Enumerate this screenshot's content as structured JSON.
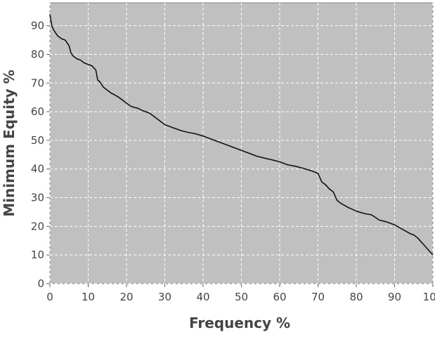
{
  "chart_data": {
    "type": "line",
    "title": "",
    "xlabel": "Frequency %",
    "ylabel": "Minimum Equity %",
    "xlim": [
      0,
      100
    ],
    "ylim": [
      0,
      98
    ],
    "x_ticks": [
      "0",
      "10",
      "20",
      "30",
      "40",
      "50",
      "60",
      "70",
      "80",
      "90",
      "100"
    ],
    "y_ticks": [
      "0",
      "10",
      "20",
      "30",
      "40",
      "50",
      "60",
      "70",
      "80",
      "90"
    ],
    "grid": true,
    "colors": {
      "plot_background": "#c0c0c0",
      "line": "#111111",
      "grid": "#ffffff"
    },
    "series": [
      {
        "x": [
          0,
          0.5,
          1,
          1.5,
          2,
          3,
          4,
          5,
          5.5,
          6,
          7,
          8,
          9,
          10,
          11,
          12,
          12.5,
          13,
          14,
          15,
          16,
          17,
          18,
          19,
          20,
          21,
          22,
          23,
          24,
          25,
          26,
          27,
          28,
          29,
          30,
          32,
          34,
          36,
          38,
          40,
          42,
          44,
          46,
          48,
          50,
          52,
          54,
          56,
          58,
          60,
          62,
          64,
          66,
          68,
          70,
          71,
          72,
          73,
          74,
          75,
          76,
          78,
          80,
          82,
          84,
          86,
          88,
          90,
          92,
          94,
          95,
          96,
          97,
          98,
          99,
          100
        ],
        "y": [
          94,
          90,
          88.5,
          87.5,
          86.5,
          85.5,
          85,
          83,
          80.5,
          79.5,
          78.5,
          78,
          77,
          76.5,
          76,
          74.5,
          71,
          70.5,
          68.5,
          67.5,
          66.5,
          65.8,
          65,
          64,
          63,
          62,
          61.5,
          61.2,
          60.5,
          60,
          59.5,
          58.5,
          57.5,
          56.5,
          55.5,
          54.5,
          53.5,
          52.8,
          52.3,
          51.5,
          50.5,
          49.5,
          48.5,
          47.5,
          46.5,
          45.5,
          44.5,
          43.8,
          43.2,
          42.5,
          41.5,
          41,
          40.3,
          39.5,
          38.5,
          35.5,
          34.5,
          33,
          32,
          29,
          28,
          26.5,
          25.3,
          24.5,
          24,
          22.2,
          21.5,
          20.5,
          19,
          17.5,
          17,
          16,
          14.5,
          13,
          11.5,
          10
        ]
      }
    ]
  }
}
